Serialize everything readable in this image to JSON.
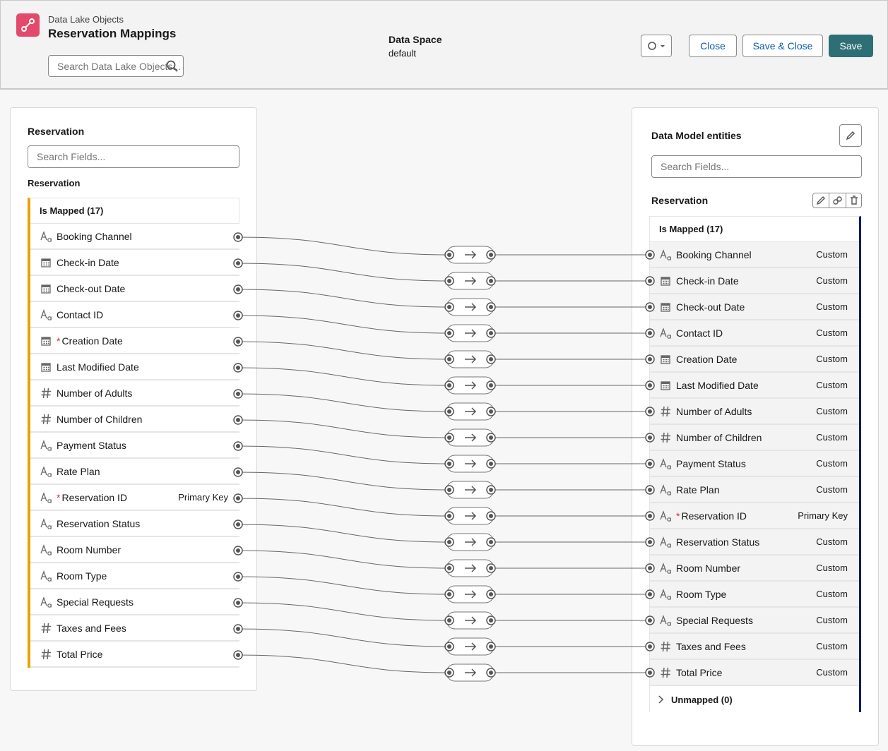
{
  "header": {
    "breadcrumb": "Data Lake Objects",
    "title": "Reservation Mappings",
    "search_placeholder": "Search Data Lake Objects...",
    "data_space_label": "Data Space",
    "data_space_value": "default",
    "buttons": [
      "Close",
      "Save & Close",
      "Save"
    ]
  },
  "source": {
    "title": "Reservation",
    "search_placeholder": "Search Fields...",
    "object": "Reservation",
    "group": "Is Mapped (17)",
    "fields": [
      {
        "name": "Booking Channel",
        "type": "text"
      },
      {
        "name": "Check-in Date",
        "type": "date"
      },
      {
        "name": "Check-out Date",
        "type": "date"
      },
      {
        "name": "Contact ID",
        "type": "text"
      },
      {
        "name": "Creation Date",
        "type": "date",
        "marker": "*"
      },
      {
        "name": "Last Modified Date",
        "type": "date"
      },
      {
        "name": "Number of Adults",
        "type": "number"
      },
      {
        "name": "Number of Children",
        "type": "number"
      },
      {
        "name": "Payment Status",
        "type": "text"
      },
      {
        "name": "Rate Plan",
        "type": "text"
      },
      {
        "name": "Reservation ID",
        "type": "text",
        "marker": "*",
        "tag": "Primary Key"
      },
      {
        "name": "Reservation Status",
        "type": "text"
      },
      {
        "name": "Room Number",
        "type": "text"
      },
      {
        "name": "Room Type",
        "type": "text"
      },
      {
        "name": "Special Requests",
        "type": "text"
      },
      {
        "name": "Taxes and Fees",
        "type": "number"
      },
      {
        "name": "Total Price",
        "type": "number"
      }
    ]
  },
  "target": {
    "title": "Data Model entities",
    "search_placeholder": "Search Fields...",
    "object": "Reservation",
    "group": "Is Mapped (17)",
    "unmapped": "Unmapped (0)",
    "fields": [
      {
        "name": "Booking Channel",
        "type": "text",
        "tag": "Custom"
      },
      {
        "name": "Check-in Date",
        "type": "date",
        "tag": "Custom"
      },
      {
        "name": "Check-out Date",
        "type": "date",
        "tag": "Custom"
      },
      {
        "name": "Contact ID",
        "type": "text",
        "tag": "Custom"
      },
      {
        "name": "Creation Date",
        "type": "date",
        "tag": "Custom"
      },
      {
        "name": "Last Modified Date",
        "type": "date",
        "tag": "Custom"
      },
      {
        "name": "Number of Adults",
        "type": "number",
        "tag": "Custom"
      },
      {
        "name": "Number of Children",
        "type": "number",
        "tag": "Custom"
      },
      {
        "name": "Payment Status",
        "type": "text",
        "tag": "Custom"
      },
      {
        "name": "Rate Plan",
        "type": "text",
        "tag": "Custom"
      },
      {
        "name": "Reservation ID",
        "type": "text",
        "marker": "*",
        "tag": "Primary Key"
      },
      {
        "name": "Reservation Status",
        "type": "text",
        "tag": "Custom"
      },
      {
        "name": "Room Number",
        "type": "text",
        "tag": "Custom"
      },
      {
        "name": "Room Type",
        "type": "text",
        "tag": "Custom"
      },
      {
        "name": "Special Requests",
        "type": "text",
        "tag": "Custom"
      },
      {
        "name": "Taxes and Fees",
        "type": "number",
        "tag": "Custom"
      },
      {
        "name": "Total Price",
        "type": "number",
        "tag": "Custom"
      }
    ]
  }
}
